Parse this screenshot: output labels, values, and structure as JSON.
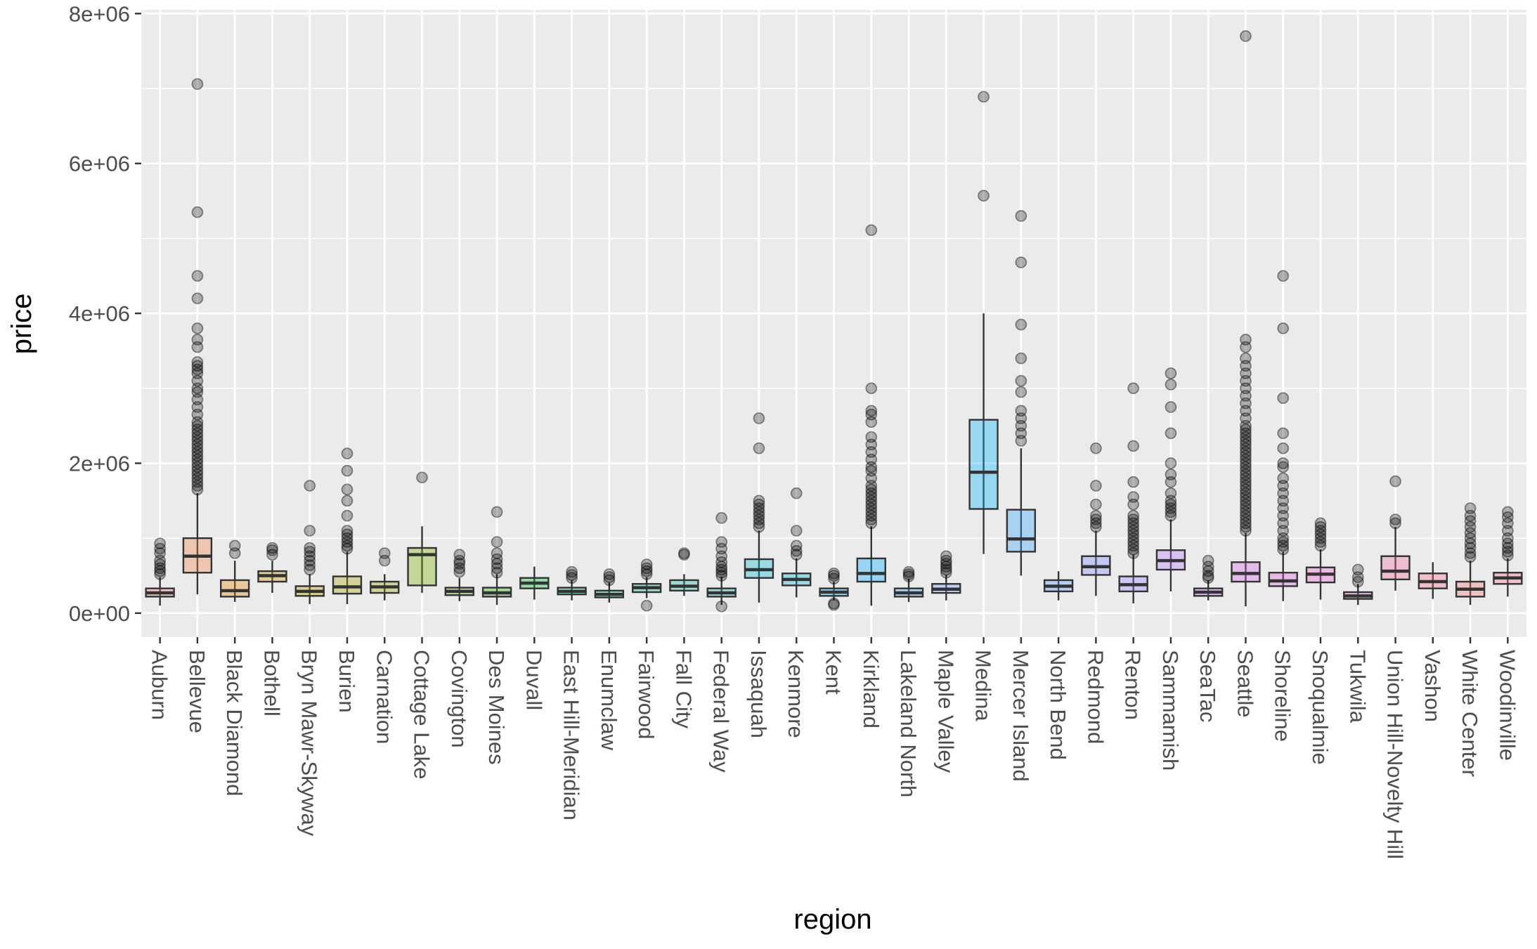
{
  "chart_data": {
    "type": "boxplot",
    "title": "",
    "xlabel": "region",
    "ylabel": "price",
    "ylim": [
      -320000,
      8050000
    ],
    "yticks": [
      0,
      2000000,
      4000000,
      6000000,
      8000000
    ],
    "ytick_labels": [
      "0e+00",
      "2e+06",
      "4e+06",
      "6e+06",
      "8e+06"
    ],
    "grid": true,
    "legend": "none",
    "categories": [
      "Auburn",
      "Bellevue",
      "Black Diamond",
      "Bothell",
      "Bryn Mawr-Skyway",
      "Burien",
      "Carnation",
      "Cottage Lake",
      "Covington",
      "Des Moines",
      "Duvall",
      "East Hill-Meridian",
      "Enumclaw",
      "Fairwood",
      "Fall City",
      "Federal Way",
      "Issaquah",
      "Kenmore",
      "Kent",
      "Kirkland",
      "Lakeland North",
      "Maple Valley",
      "Medina",
      "Mercer Island",
      "North Bend",
      "Redmond",
      "Renton",
      "Sammamish",
      "SeaTac",
      "Seattle",
      "Shoreline",
      "Snoqualmie",
      "Tukwila",
      "Union Hill-Novelty Hill",
      "Vashon",
      "White Center",
      "Woodinville"
    ],
    "boxes": [
      {
        "region": "Auburn",
        "color": "#f8766d",
        "min": 100000,
        "q1": 220000,
        "median": 270000,
        "q3": 330000,
        "max": 480000,
        "outliers": [
          520000,
          560000,
          600000,
          650000,
          700000,
          800000,
          860000,
          930000
        ]
      },
      {
        "region": "Bellevue",
        "color": "#ee8044",
        "min": 250000,
        "q1": 540000,
        "median": 760000,
        "q3": 1000000,
        "max": 1600000,
        "outliers": [
          1650000,
          1700000,
          1750000,
          1800000,
          1850000,
          1900000,
          1950000,
          2000000,
          2050000,
          2100000,
          2150000,
          2200000,
          2250000,
          2300000,
          2350000,
          2400000,
          2450000,
          2500000,
          2550000,
          2650000,
          2750000,
          2850000,
          2950000,
          3000000,
          3100000,
          3200000,
          3250000,
          3300000,
          3350000,
          3550000,
          3650000,
          3800000,
          4200000,
          4500000,
          5350000,
          7060000
        ]
      },
      {
        "region": "Black Diamond",
        "color": "#e38900",
        "min": 150000,
        "q1": 220000,
        "median": 300000,
        "q3": 440000,
        "max": 700000,
        "outliers": [
          800000,
          900000
        ]
      },
      {
        "region": "Bothell",
        "color": "#d59100",
        "min": 270000,
        "q1": 420000,
        "median": 500000,
        "q3": 560000,
        "max": 700000,
        "outliers": [
          780000,
          840000,
          870000
        ]
      },
      {
        "region": "Bryn Mawr-Skyway",
        "color": "#c49a00",
        "min": 120000,
        "q1": 230000,
        "median": 290000,
        "q3": 360000,
        "max": 520000,
        "outliers": [
          580000,
          640000,
          700000,
          760000,
          820000,
          870000,
          1100000,
          1700000
        ]
      },
      {
        "region": "Burien",
        "color": "#b0a100",
        "min": 120000,
        "q1": 260000,
        "median": 350000,
        "q3": 490000,
        "max": 820000,
        "outliers": [
          860000,
          900000,
          950000,
          1000000,
          1050000,
          1100000,
          1300000,
          1500000,
          1650000,
          1900000,
          2130000
        ]
      },
      {
        "region": "Carnation",
        "color": "#99a800",
        "min": 170000,
        "q1": 270000,
        "median": 350000,
        "q3": 420000,
        "max": 520000,
        "outliers": [
          700000,
          800000
        ]
      },
      {
        "region": "Cottage Lake",
        "color": "#7fae00",
        "min": 270000,
        "q1": 370000,
        "median": 780000,
        "q3": 870000,
        "max": 1160000,
        "outliers": [
          1810000
        ]
      },
      {
        "region": "Covington",
        "color": "#5db300",
        "min": 160000,
        "q1": 240000,
        "median": 290000,
        "q3": 340000,
        "max": 470000,
        "outliers": [
          550000,
          600000,
          660000,
          700000,
          780000
        ]
      },
      {
        "region": "Des Moines",
        "color": "#1db700",
        "min": 110000,
        "q1": 220000,
        "median": 270000,
        "q3": 340000,
        "max": 520000,
        "outliers": [
          540000,
          600000,
          660000,
          720000,
          800000,
          950000,
          1350000
        ]
      },
      {
        "region": "Duvall",
        "color": "#00ba38",
        "min": 180000,
        "q1": 330000,
        "median": 400000,
        "q3": 470000,
        "max": 620000,
        "outliers": []
      },
      {
        "region": "East Hill-Meridian",
        "color": "#00bd5f",
        "min": 170000,
        "q1": 250000,
        "median": 290000,
        "q3": 340000,
        "max": 440000,
        "outliers": [
          470000,
          510000,
          550000
        ]
      },
      {
        "region": "Enumclaw",
        "color": "#00bf7d",
        "min": 140000,
        "q1": 210000,
        "median": 250000,
        "q3": 300000,
        "max": 410000,
        "outliers": [
          440000,
          480000,
          520000
        ]
      },
      {
        "region": "Fairwood",
        "color": "#00c097",
        "min": 200000,
        "q1": 280000,
        "median": 340000,
        "q3": 390000,
        "max": 480000,
        "outliers": [
          100000,
          520000,
          560000,
          600000,
          650000
        ]
      },
      {
        "region": "Fall City",
        "color": "#00c0af",
        "min": 230000,
        "q1": 300000,
        "median": 360000,
        "q3": 440000,
        "max": 520000,
        "outliers": [
          780000,
          800000
        ]
      },
      {
        "region": "Federal Way",
        "color": "#00bdc2",
        "min": 110000,
        "q1": 220000,
        "median": 270000,
        "q3": 330000,
        "max": 490000,
        "outliers": [
          90000,
          500000,
          540000,
          580000,
          620000,
          680000,
          760000,
          860000,
          950000,
          1270000
        ]
      },
      {
        "region": "Issaquah",
        "color": "#00bad5",
        "min": 140000,
        "q1": 470000,
        "median": 580000,
        "q3": 720000,
        "max": 1100000,
        "outliers": [
          1150000,
          1200000,
          1250000,
          1300000,
          1350000,
          1400000,
          1450000,
          1500000,
          2200000,
          2600000
        ]
      },
      {
        "region": "Kenmore",
        "color": "#00b5e5",
        "min": 210000,
        "q1": 370000,
        "median": 450000,
        "q3": 530000,
        "max": 730000,
        "outliers": [
          780000,
          830000,
          900000,
          1100000,
          1600000
        ]
      },
      {
        "region": "Kent",
        "color": "#00aff3",
        "min": 170000,
        "q1": 230000,
        "median": 280000,
        "q3": 330000,
        "max": 420000,
        "outliers": [
          110000,
          130000,
          460000,
          500000,
          530000
        ]
      },
      {
        "region": "Kirkland",
        "color": "#00a8ff",
        "min": 100000,
        "q1": 420000,
        "median": 530000,
        "q3": 730000,
        "max": 1160000,
        "outliers": [
          1200000,
          1250000,
          1300000,
          1350000,
          1400000,
          1450000,
          1500000,
          1550000,
          1600000,
          1650000,
          1700000,
          1800000,
          1900000,
          1950000,
          2050000,
          2150000,
          2250000,
          2350000,
          2550000,
          2650000,
          2700000,
          3000000,
          5110000
        ]
      },
      {
        "region": "Lakeland North",
        "color": "#35a2ff",
        "min": 150000,
        "q1": 220000,
        "median": 270000,
        "q3": 330000,
        "max": 460000,
        "outliers": [
          490000,
          520000,
          550000
        ]
      },
      {
        "region": "Maple Valley",
        "color": "#7099ff",
        "min": 170000,
        "q1": 270000,
        "median": 320000,
        "q3": 390000,
        "max": 510000,
        "outliers": [
          540000,
          580000,
          620000,
          660000,
          700000,
          760000
        ]
      },
      {
        "region": "Medina",
        "color": "#00b0f6",
        "min": 790000,
        "q1": 1390000,
        "median": 1880000,
        "q3": 2580000,
        "max": 4000000,
        "outliers": [
          5570000,
          6890000
        ]
      },
      {
        "region": "Mercer Island",
        "color": "#2fa0ff",
        "min": 500000,
        "q1": 820000,
        "median": 990000,
        "q3": 1380000,
        "max": 2200000,
        "outliers": [
          2300000,
          2400000,
          2500000,
          2600000,
          2700000,
          2950000,
          3100000,
          3400000,
          3850000,
          4680000,
          5300000
        ]
      },
      {
        "region": "North Bend",
        "color": "#5a8fff",
        "min": 170000,
        "q1": 290000,
        "median": 360000,
        "q3": 440000,
        "max": 560000,
        "outliers": []
      },
      {
        "region": "Redmond",
        "color": "#7b86ff",
        "min": 230000,
        "q1": 510000,
        "median": 620000,
        "q3": 760000,
        "max": 1100000,
        "outliers": [
          1150000,
          1200000,
          1250000,
          1300000,
          1450000,
          1700000,
          2200000
        ]
      },
      {
        "region": "Renton",
        "color": "#9a7dff",
        "min": 130000,
        "q1": 290000,
        "median": 380000,
        "q3": 490000,
        "max": 780000,
        "outliers": [
          800000,
          850000,
          900000,
          950000,
          1000000,
          1050000,
          1100000,
          1150000,
          1200000,
          1250000,
          1300000,
          1450000,
          1550000,
          1750000,
          2230000,
          3000000
        ]
      },
      {
        "region": "Sammamish",
        "color": "#b275ff",
        "min": 290000,
        "q1": 580000,
        "median": 700000,
        "q3": 840000,
        "max": 1250000,
        "outliers": [
          1300000,
          1350000,
          1400000,
          1450000,
          1500000,
          1600000,
          1750000,
          1850000,
          2000000,
          2400000,
          2750000,
          3050000,
          3200000
        ]
      },
      {
        "region": "SeaTac",
        "color": "#c46cf4",
        "min": 170000,
        "q1": 230000,
        "median": 280000,
        "q3": 330000,
        "max": 440000,
        "outliers": [
          470000,
          500000,
          560000,
          620000,
          700000
        ]
      },
      {
        "region": "Seattle",
        "color": "#d562ea",
        "min": 90000,
        "q1": 420000,
        "median": 530000,
        "q3": 680000,
        "max": 1070000,
        "outliers": [
          1100000,
          1150000,
          1200000,
          1250000,
          1300000,
          1350000,
          1400000,
          1450000,
          1500000,
          1550000,
          1600000,
          1650000,
          1700000,
          1750000,
          1800000,
          1850000,
          1900000,
          1950000,
          2000000,
          2050000,
          2100000,
          2150000,
          2200000,
          2250000,
          2300000,
          2350000,
          2400000,
          2450000,
          2500000,
          2600000,
          2700000,
          2800000,
          2900000,
          3000000,
          3100000,
          3200000,
          3300000,
          3400000,
          3550000,
          3650000,
          7700000
        ]
      },
      {
        "region": "Shoreline",
        "color": "#e05fdd",
        "min": 160000,
        "q1": 360000,
        "median": 430000,
        "q3": 540000,
        "max": 820000,
        "outliers": [
          850000,
          900000,
          950000,
          1000000,
          1100000,
          1200000,
          1300000,
          1400000,
          1500000,
          1600000,
          1700000,
          1800000,
          1950000,
          2000000,
          2200000,
          2400000,
          2870000,
          3800000,
          4500000
        ]
      },
      {
        "region": "Snoqualmie",
        "color": "#e95ecd",
        "min": 180000,
        "q1": 410000,
        "median": 520000,
        "q3": 610000,
        "max": 850000,
        "outliers": [
          900000,
          950000,
          1000000,
          1050000,
          1100000,
          1150000,
          1200000
        ]
      },
      {
        "region": "Tukwila",
        "color": "#f062ba",
        "min": 110000,
        "q1": 190000,
        "median": 230000,
        "q3": 280000,
        "max": 390000,
        "outliers": [
          420000,
          480000,
          580000
        ]
      },
      {
        "region": "Union Hill-Novelty Hill",
        "color": "#f666a4",
        "min": 300000,
        "q1": 450000,
        "median": 560000,
        "q3": 760000,
        "max": 1150000,
        "outliers": [
          1200000,
          1250000,
          1760000
        ]
      },
      {
        "region": "Vashon",
        "color": "#f96c8c",
        "min": 190000,
        "q1": 330000,
        "median": 420000,
        "q3": 530000,
        "max": 680000,
        "outliers": []
      },
      {
        "region": "White Center",
        "color": "#fb7276",
        "min": 110000,
        "q1": 220000,
        "median": 320000,
        "q3": 420000,
        "max": 700000,
        "outliers": [
          750000,
          800000,
          870000,
          930000,
          1000000,
          1070000,
          1150000,
          1230000,
          1300000,
          1400000
        ]
      },
      {
        "region": "Woodinville",
        "color": "#fd6c8f",
        "min": 220000,
        "q1": 390000,
        "median": 470000,
        "q3": 540000,
        "max": 730000,
        "outliers": [
          770000,
          820000,
          870000,
          930000,
          1000000,
          1100000,
          1200000,
          1280000,
          1350000
        ]
      }
    ]
  }
}
